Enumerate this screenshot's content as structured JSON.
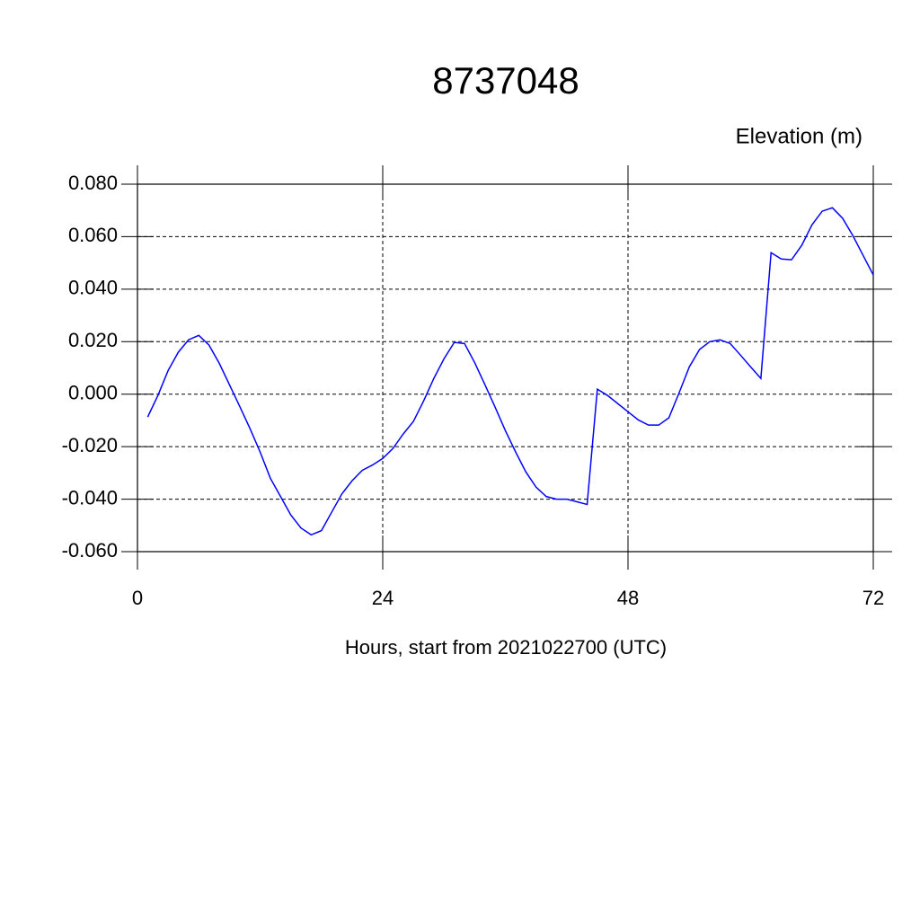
{
  "chart_data": {
    "type": "line",
    "title": "8737048",
    "subtitle": "Elevation (m)",
    "x_label": "Hours, start from 2021022700 (UTC)",
    "x": [
      1,
      2,
      3,
      4,
      5,
      6,
      7,
      8,
      9,
      10,
      11,
      12,
      13,
      14,
      15,
      16,
      17,
      18,
      19,
      20,
      21,
      22,
      23,
      24,
      25,
      26,
      27,
      28,
      29,
      30,
      31,
      32,
      33,
      34,
      35,
      36,
      37,
      38,
      39,
      40,
      41,
      42,
      43,
      44,
      45,
      46,
      47,
      48,
      49,
      50,
      51,
      52,
      53,
      54,
      55,
      56,
      57,
      58,
      59,
      60,
      61,
      62,
      63,
      64,
      65,
      66,
      67,
      68,
      69,
      70,
      71,
      72
    ],
    "series": [
      {
        "color": "#0000ff",
        "values": [
          -0.0087,
          -0.0005,
          0.009,
          0.016,
          0.0207,
          0.0224,
          0.0187,
          0.0118,
          0.0036,
          -0.0046,
          -0.013,
          -0.022,
          -0.032,
          -0.039,
          -0.046,
          -0.051,
          -0.0536,
          -0.052,
          -0.045,
          -0.038,
          -0.033,
          -0.029,
          -0.027,
          -0.0245,
          -0.0207,
          -0.0152,
          -0.0104,
          -0.0026,
          0.006,
          0.0135,
          0.0197,
          0.0193,
          0.012,
          0.0036,
          -0.005,
          -0.0139,
          -0.022,
          -0.0296,
          -0.0354,
          -0.039,
          -0.04,
          -0.04,
          -0.041,
          -0.042,
          0.0019,
          -0.0005,
          -0.0036,
          -0.0067,
          -0.0098,
          -0.0118,
          -0.0118,
          -0.009,
          0.0005,
          0.0104,
          0.017,
          0.02,
          0.0207,
          0.0193,
          0.0149,
          0.0104,
          0.006,
          0.0539,
          0.0515,
          0.0512,
          0.0567,
          0.0645,
          0.0697,
          0.071,
          0.067,
          0.0604,
          0.0529,
          0.0454
        ]
      }
    ],
    "xlim": [
      0,
      72
    ],
    "xticks": [
      0,
      24,
      48,
      72
    ],
    "ylim": [
      -0.06,
      0.08
    ],
    "yticks": [
      {
        "value": -0.06,
        "label": "-0.060"
      },
      {
        "value": -0.04,
        "label": "-0.040"
      },
      {
        "value": -0.02,
        "label": "-0.020"
      },
      {
        "value": 0,
        "label": "0.000"
      },
      {
        "value": 0.02,
        "label": "0.020"
      },
      {
        "value": 0.04,
        "label": "0.040"
      },
      {
        "value": 0.06,
        "label": "0.060"
      },
      {
        "value": 0.08,
        "label": "0.080"
      }
    ],
    "grid": true
  }
}
